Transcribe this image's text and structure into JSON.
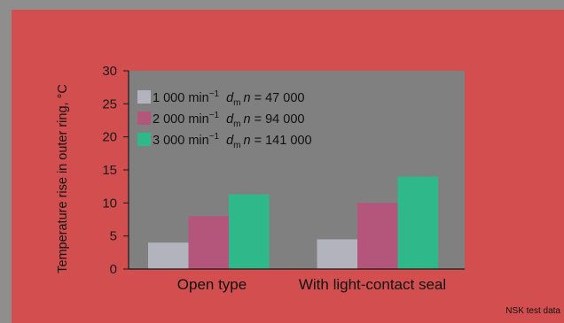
{
  "chart_data": {
    "type": "bar",
    "ylabel": "Temperature rise in outer ring, °C",
    "xlabel": "",
    "ylim": [
      0,
      30
    ],
    "yticks": [
      0,
      5,
      10,
      15,
      20,
      25,
      30
    ],
    "categories": [
      "Open type",
      "With light-contact seal"
    ],
    "series": [
      {
        "name": "1 000 min⁻¹  dₘn = 47 000",
        "parts": [
          "1 000 min",
          "−1",
          "d",
          "m",
          "n",
          " = 47 000"
        ],
        "color": "#b3b3bd",
        "values": [
          4,
          4.5
        ]
      },
      {
        "name": "2 000 min⁻¹  dₘn = 94 000",
        "parts": [
          "2 000 min",
          "−1",
          "d",
          "m",
          "n",
          " = 94 000"
        ],
        "color": "#b4557b",
        "values": [
          8,
          10
        ]
      },
      {
        "name": "3 000 min⁻¹  dₘn = 141 000",
        "parts": [
          "3 000 min",
          "−1",
          "d",
          "m",
          "n",
          " = 141 000"
        ],
        "color": "#2fb88a",
        "values": [
          11.3,
          14
        ]
      }
    ],
    "legend_position": "top-left",
    "grid": false,
    "source_note": "NSK test data"
  },
  "colors": {
    "background": "#8e8e8e",
    "panel": "#d34e4e",
    "plot_area": "#808080"
  }
}
